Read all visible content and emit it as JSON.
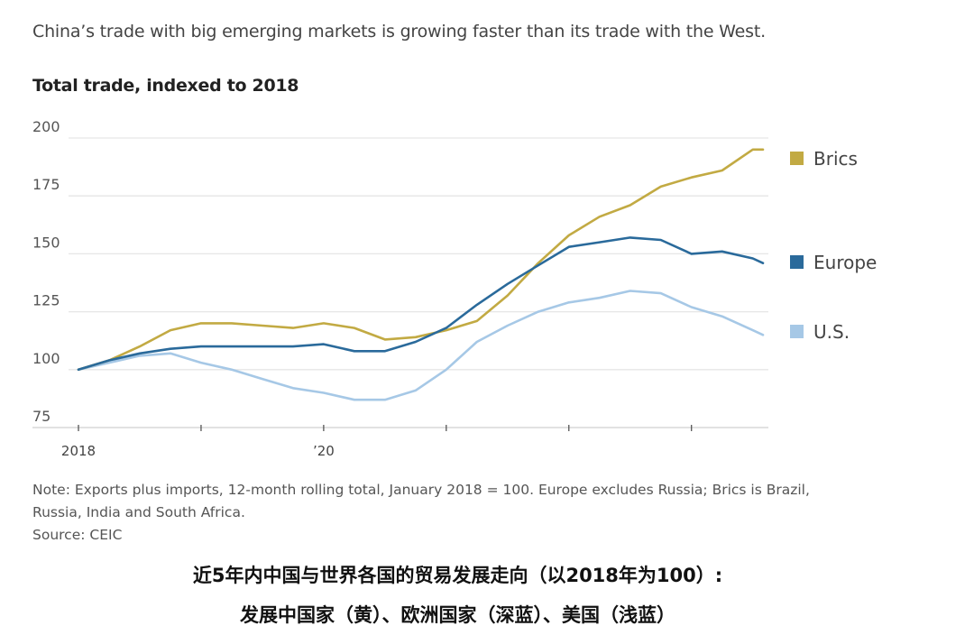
{
  "header": {
    "subtitle": "China’s trade with big emerging markets is growing faster than its trade with the West.",
    "title": "Total trade, indexed to 2018"
  },
  "footer": {
    "note_line1": "Note: Exports plus imports, 12-month rolling total, January 2018 = 100. Europe excludes Russia; Brics is Brazil,",
    "note_line2": "Russia, India and South Africa.",
    "source": "Source: CEIC"
  },
  "caption": {
    "line1": "近5年内中国与世界各国的贸易发展走向（以2018年为100）:",
    "line2": "发展中国家（黄）、欧洲国家（深蓝）、美国（浅蓝）"
  },
  "chart_data": {
    "type": "line",
    "title": "Total trade, indexed to 2018",
    "xlabel": "",
    "ylabel": "",
    "x_unit": "months since January 2018",
    "xlim": [
      0,
      67
    ],
    "ylim": [
      75,
      200
    ],
    "yticks": [
      75,
      100,
      125,
      150,
      175,
      200
    ],
    "ytick_labels": [
      "75",
      "100",
      "125",
      "150",
      "175",
      "200"
    ],
    "xticks": [
      0,
      12,
      24,
      36,
      48,
      60
    ],
    "xtick_labels": [
      "2018",
      "",
      "’20",
      "",
      "",
      ""
    ],
    "grid": true,
    "legend_position": "right",
    "x": [
      0,
      3,
      6,
      9,
      12,
      15,
      18,
      21,
      24,
      27,
      30,
      33,
      36,
      39,
      42,
      45,
      48,
      51,
      54,
      57,
      60,
      63,
      66,
      67
    ],
    "series": [
      {
        "name": "Brics",
        "color": "#c2aa43",
        "values": [
          100,
          104,
          110,
          117,
          120,
          120,
          119,
          118,
          120,
          118,
          113,
          114,
          117,
          121,
          132,
          146,
          158,
          166,
          171,
          179,
          183,
          186,
          195,
          195
        ]
      },
      {
        "name": "Europe",
        "color": "#2a6a9b",
        "values": [
          100,
          104,
          107,
          109,
          110,
          110,
          110,
          110,
          111,
          108,
          108,
          112,
          118,
          128,
          137,
          145,
          153,
          155,
          157,
          156,
          150,
          151,
          148,
          146
        ]
      },
      {
        "name": "U.S.",
        "color": "#a6c8e6",
        "values": [
          100,
          103,
          106,
          107,
          103,
          100,
          96,
          92,
          90,
          87,
          87,
          91,
          100,
          112,
          119,
          125,
          129,
          131,
          134,
          133,
          127,
          123,
          117,
          115
        ]
      }
    ]
  }
}
